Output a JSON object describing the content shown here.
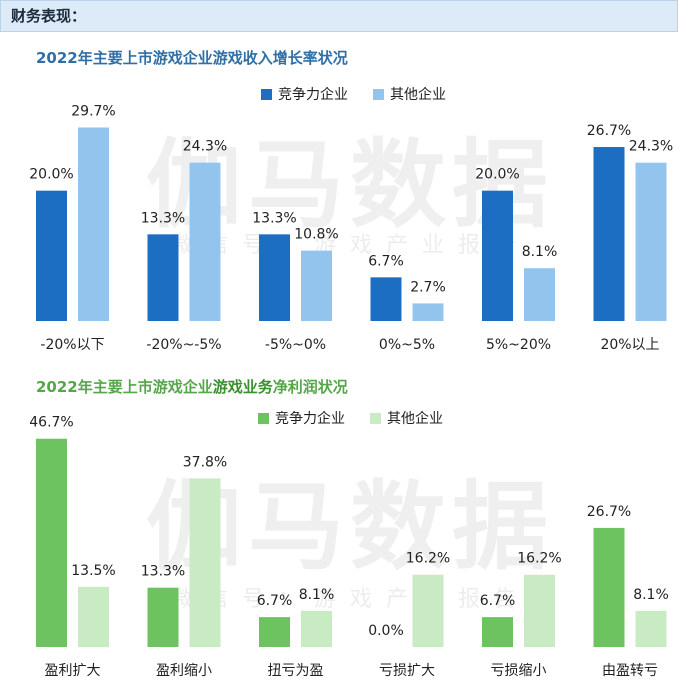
{
  "header": {
    "title": "财务表现："
  },
  "watermark": {
    "big": "伽马数据",
    "small": "微信号：游戏产业报告"
  },
  "chart_data": [
    {
      "type": "bar",
      "title": "2022年主要上市游戏企业游戏收入增长率状况",
      "categories": [
        "-20%以下",
        "-20%~-5%",
        "-5%~0%",
        "0%~5%",
        "5%~20%",
        "20%以上"
      ],
      "series": [
        {
          "name": "竞争力企业",
          "values": [
            20.0,
            13.3,
            13.3,
            6.7,
            20.0,
            26.7
          ],
          "labels": [
            "20.0%",
            "13.3%",
            "13.3%",
            "6.7%",
            "20.0%",
            "26.7%"
          ]
        },
        {
          "name": "其他企业",
          "values": [
            29.7,
            24.3,
            10.8,
            2.7,
            8.1,
            24.3
          ],
          "labels": [
            "29.7%",
            "24.3%",
            "10.8%",
            "2.7%",
            "8.1%",
            "24.3%"
          ]
        }
      ],
      "colors": [
        "#1b6ec2",
        "#93c4ee"
      ],
      "legend": "top-center",
      "ylim": [
        0,
        32
      ],
      "grid": false
    },
    {
      "type": "bar",
      "title_parts": [
        "2022年主要上市游戏企业",
        "游戏业务",
        "净利润状况"
      ],
      "categories": [
        "盈利扩大",
        "盈利缩小",
        "扭亏为盈",
        "亏损扩大",
        "亏损缩小",
        "由盈转亏"
      ],
      "series": [
        {
          "name": "竞争力企业",
          "values": [
            46.7,
            13.3,
            6.7,
            0.0,
            6.7,
            26.7
          ],
          "labels": [
            "46.7%",
            "13.3%",
            "6.7%",
            "0.0%",
            "6.7%",
            "26.7%"
          ]
        },
        {
          "name": "其他企业",
          "values": [
            13.5,
            37.8,
            8.1,
            16.2,
            16.2,
            8.1
          ],
          "labels": [
            "13.5%",
            "37.8%",
            "8.1%",
            "16.2%",
            "16.2%",
            "8.1%"
          ]
        }
      ],
      "colors": [
        "#6cc35f",
        "#c9ebc3"
      ],
      "legend": "top-center",
      "ylim": [
        0,
        50
      ],
      "grid": false
    }
  ]
}
